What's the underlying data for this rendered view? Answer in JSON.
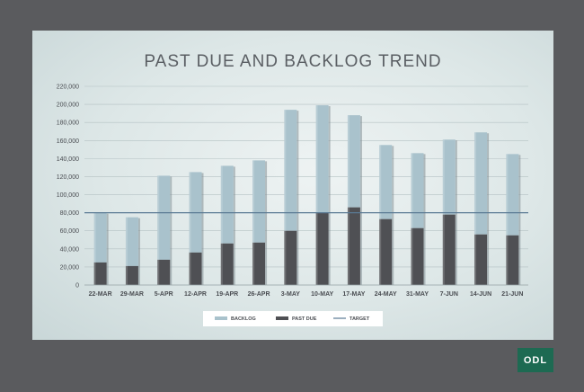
{
  "chart_data": {
    "type": "bar",
    "stacked": true,
    "title": "PAST DUE AND BACKLOG TREND",
    "categories": [
      "22-MAR",
      "29-MAR",
      "5-APR",
      "12-APR",
      "19-APR",
      "26-APR",
      "3-MAY",
      "10-MAY",
      "17-MAY",
      "24-MAY",
      "31-MAY",
      "7-JUN",
      "14-JUN",
      "21-JUN"
    ],
    "series": [
      {
        "name": "PAST DUE",
        "color": "#4f5054",
        "values": [
          25000,
          21000,
          28000,
          36000,
          46000,
          47000,
          60000,
          80000,
          86000,
          73000,
          63000,
          78000,
          56000,
          55000
        ]
      },
      {
        "name": "BACKLOG",
        "color": "#a9c2cc",
        "values": [
          55000,
          54000,
          93000,
          89000,
          86000,
          91000,
          134000,
          119000,
          102000,
          82000,
          83000,
          83000,
          113000,
          90000
        ]
      }
    ],
    "target": {
      "name": "TARGET",
      "value": 80000,
      "color": "#5a7a94"
    },
    "ylim": [
      0,
      220000
    ],
    "yticks": [
      "0",
      "20,000",
      "40,000",
      "60,000",
      "80,000",
      "100,000",
      "120,000",
      "140,000",
      "160,000",
      "180,000",
      "200,000",
      "220,000"
    ],
    "legend": {
      "position": "bottom",
      "items": [
        "BACKLOG",
        "PAST DUE",
        "TARGET"
      ]
    },
    "grid": true,
    "xlabel": "",
    "ylabel": ""
  },
  "logo": {
    "text": "ODL"
  }
}
